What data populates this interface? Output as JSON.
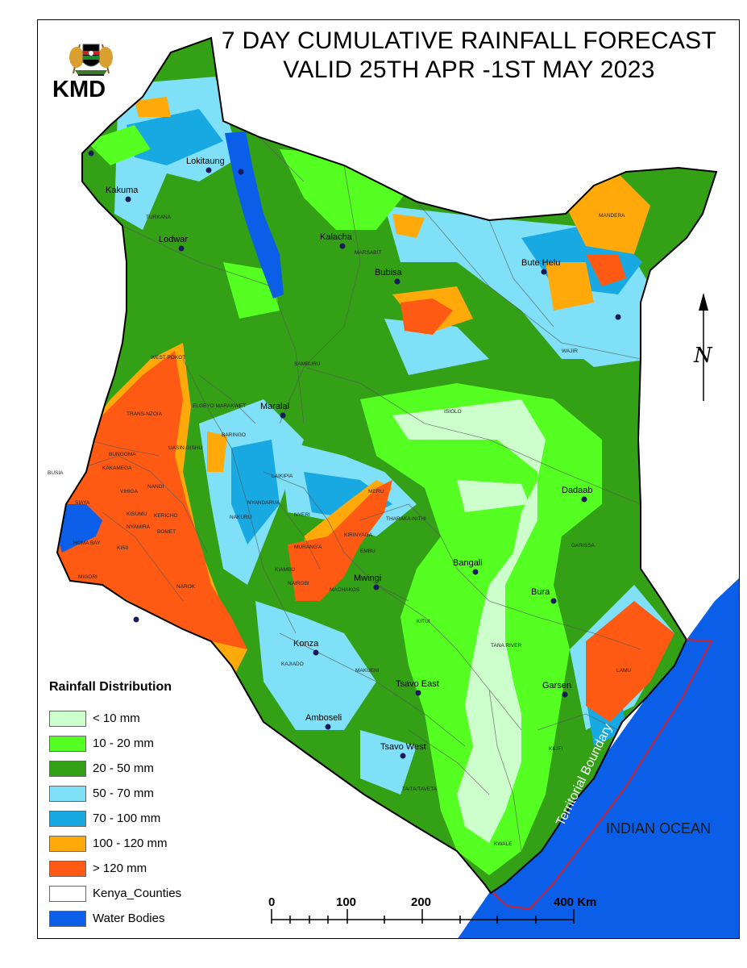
{
  "title": {
    "line1": "7 DAY CUMULATIVE RAINFALL FORECAST",
    "line2": "VALID 25TH APR -1ST MAY 2023"
  },
  "logo": {
    "icon": "kenya-coat-of-arms-icon",
    "text": "KMD"
  },
  "legend": {
    "title": "Rainfall Distribution",
    "items": [
      {
        "label": "< 10 mm",
        "color": "#ccffcc"
      },
      {
        "label": "10 - 20 mm",
        "color": "#55ff22"
      },
      {
        "label": "20 - 50 mm",
        "color": "#33a016"
      },
      {
        "label": "50 - 70 mm",
        "color": "#7fe0f8"
      },
      {
        "label": "70 - 100 mm",
        "color": "#18a8e2"
      },
      {
        "label": "100 - 120 mm",
        "color": "#ffa90a"
      },
      {
        "label": "> 120 mm",
        "color": "#ff5a14"
      },
      {
        "label": "Kenya_Counties",
        "color": "#ffffff"
      },
      {
        "label": "Water Bodies",
        "color": "#0a5ee8"
      }
    ]
  },
  "scale_bar": {
    "ticks": [
      "0",
      "100",
      "200",
      "400 Km"
    ]
  },
  "north_arrow": {
    "label": "N",
    "icon": "north-arrow-icon"
  },
  "ocean_label": "INDIAN OCEAN",
  "boundary_label": "Territorial Boundary",
  "towns": [
    "Lokitaung",
    "Kakuma",
    "Lodwar",
    "Kalacha",
    "Bubisa",
    "Bute Helu",
    "Maralal",
    "Dadaab",
    "Bangali",
    "Mwingi",
    "Bura",
    "Konza",
    "Tsavo East",
    "Garsen",
    "Amboseli",
    "Tsavo West"
  ],
  "counties": [
    "TURKANA",
    "MARSABIT",
    "MANDERA",
    "WAJIR",
    "SAMBURU",
    "ISIOLO",
    "WEST POKOT",
    "TRANS-NZOIA",
    "ELGEYO MARAKWET",
    "BARINGO",
    "BUNGOMA",
    "UASIN GISHU",
    "KAKAMEGA",
    "NANDI",
    "VIHIGA",
    "SIAYA",
    "KISUMU",
    "KERICHO",
    "HOMA BAY",
    "NYAMIRA",
    "BOMET",
    "KISII",
    "MIGORI",
    "NAROK",
    "LAIKIPIA",
    "NAKURU",
    "NYANDARUA",
    "NYERI",
    "MERU",
    "THARAKA-NITHI",
    "KIRINYAGA",
    "EMBU",
    "MURANG'A",
    "KIAMBU",
    "NAIROBI",
    "MACHAKOS",
    "KITUI",
    "GARISSA",
    "TANA RIVER",
    "KAJIADO",
    "MAKUENI",
    "LAMU",
    "KILIFI",
    "TAITA/TAVETA",
    "KWALE",
    "BUSIA"
  ],
  "colors": {
    "frame": "#000000",
    "territorial_boundary": "#d0202a",
    "ocean": "#0a5ee8"
  }
}
